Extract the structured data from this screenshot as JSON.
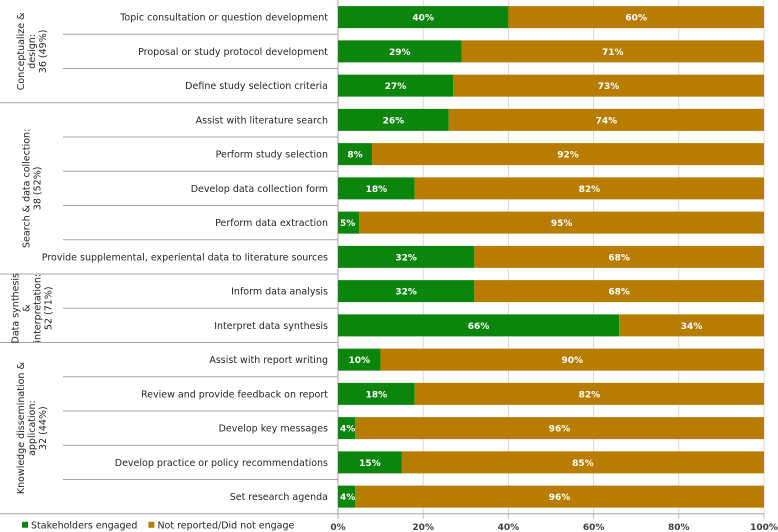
{
  "chart_data": {
    "type": "bar",
    "stacked": true,
    "orientation": "horizontal",
    "groups": [
      {
        "label": [
          "Conceptualize &",
          "design:",
          "36 (49%)"
        ],
        "rows": 3
      },
      {
        "label": [
          "Search & data collection:",
          "38 (52%)"
        ],
        "rows": 5
      },
      {
        "label": [
          "Data synthesis",
          "&",
          "interpretation:",
          "52 (71%)"
        ],
        "rows": 2
      },
      {
        "label": [
          "Knowledge dissemination &",
          "application:",
          "32 (44%)"
        ],
        "rows": 5
      }
    ],
    "categories": [
      "Topic consultation or question development",
      "Proposal or study protocol development",
      "Define study selection criteria",
      "Assist with literature search",
      "Perform study selection",
      "Develop data collection form",
      "Perform data extraction",
      "Provide supplemental, experiental data to literature sources",
      "Inform data analysis",
      "Interpret data synthesis",
      "Assist with report writing",
      "Review and provide feedback on report",
      "Develop key messages",
      "Develop practice or policy recommendations",
      "Set research agenda"
    ],
    "series": [
      {
        "name": "Stakeholders engaged",
        "color": "#0b850b",
        "values": [
          40,
          29,
          27,
          26,
          8,
          18,
          5,
          32,
          32,
          66,
          10,
          18,
          4,
          15,
          4
        ]
      },
      {
        "name": "Not reported/Did not engage",
        "color": "#b87c00",
        "values": [
          60,
          71,
          73,
          74,
          92,
          82,
          95,
          68,
          68,
          34,
          90,
          82,
          96,
          85,
          96
        ]
      }
    ],
    "xlim": [
      0,
      100
    ],
    "xticks": [
      "0%",
      "20%",
      "40%",
      "60%",
      "80%",
      "100%"
    ],
    "legend": "bottom-left",
    "grid": true
  }
}
